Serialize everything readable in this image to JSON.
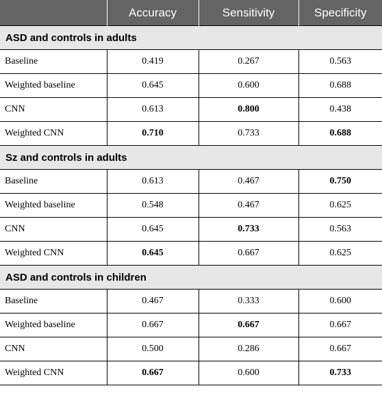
{
  "header": {
    "col0": "",
    "col1": "Accuracy",
    "col2": "Sensitivity",
    "col3": "Specificity"
  },
  "sections": [
    {
      "title": "ASD and controls in adults",
      "rows": [
        {
          "label": "Baseline",
          "accuracy": "0.419",
          "sensitivity": "0.267",
          "specificity": "0.563",
          "bold": []
        },
        {
          "label": "Weighted baseline",
          "accuracy": "0.645",
          "sensitivity": "0.600",
          "specificity": "0.688",
          "bold": []
        },
        {
          "label": "CNN",
          "accuracy": "0.613",
          "sensitivity": "0.800",
          "specificity": "0.438",
          "bold": [
            "sensitivity"
          ]
        },
        {
          "label": "Weighted CNN",
          "accuracy": "0.710",
          "sensitivity": "0.733",
          "specificity": "0.688",
          "bold": [
            "accuracy",
            "specificity"
          ]
        }
      ]
    },
    {
      "title": "Sz and controls in adults",
      "rows": [
        {
          "label": "Baseline",
          "accuracy": "0.613",
          "sensitivity": "0.467",
          "specificity": "0.750",
          "bold": [
            "specificity"
          ]
        },
        {
          "label": "Weighted baseline",
          "accuracy": "0.548",
          "sensitivity": "0.467",
          "specificity": "0.625",
          "bold": []
        },
        {
          "label": "CNN",
          "accuracy": "0.645",
          "sensitivity": "0.733",
          "specificity": "0.563",
          "bold": [
            "sensitivity"
          ]
        },
        {
          "label": "Weighted CNN",
          "accuracy": "0.645",
          "sensitivity": "0.667",
          "specificity": "0.625",
          "bold": [
            "accuracy"
          ]
        }
      ]
    },
    {
      "title": "ASD and controls in children",
      "rows": [
        {
          "label": "Baseline",
          "accuracy": "0.467",
          "sensitivity": "0.333",
          "specificity": "0.600",
          "bold": []
        },
        {
          "label": "Weighted baseline",
          "accuracy": "0.667",
          "sensitivity": "0.667",
          "specificity": "0.667",
          "bold": [
            "sensitivity"
          ]
        },
        {
          "label": "CNN",
          "accuracy": "0.500",
          "sensitivity": "0.286",
          "specificity": "0.667",
          "bold": []
        },
        {
          "label": "Weighted CNN",
          "accuracy": "0.667",
          "sensitivity": "0.600",
          "specificity": "0.733",
          "bold": [
            "accuracy",
            "specificity"
          ]
        }
      ]
    }
  ]
}
